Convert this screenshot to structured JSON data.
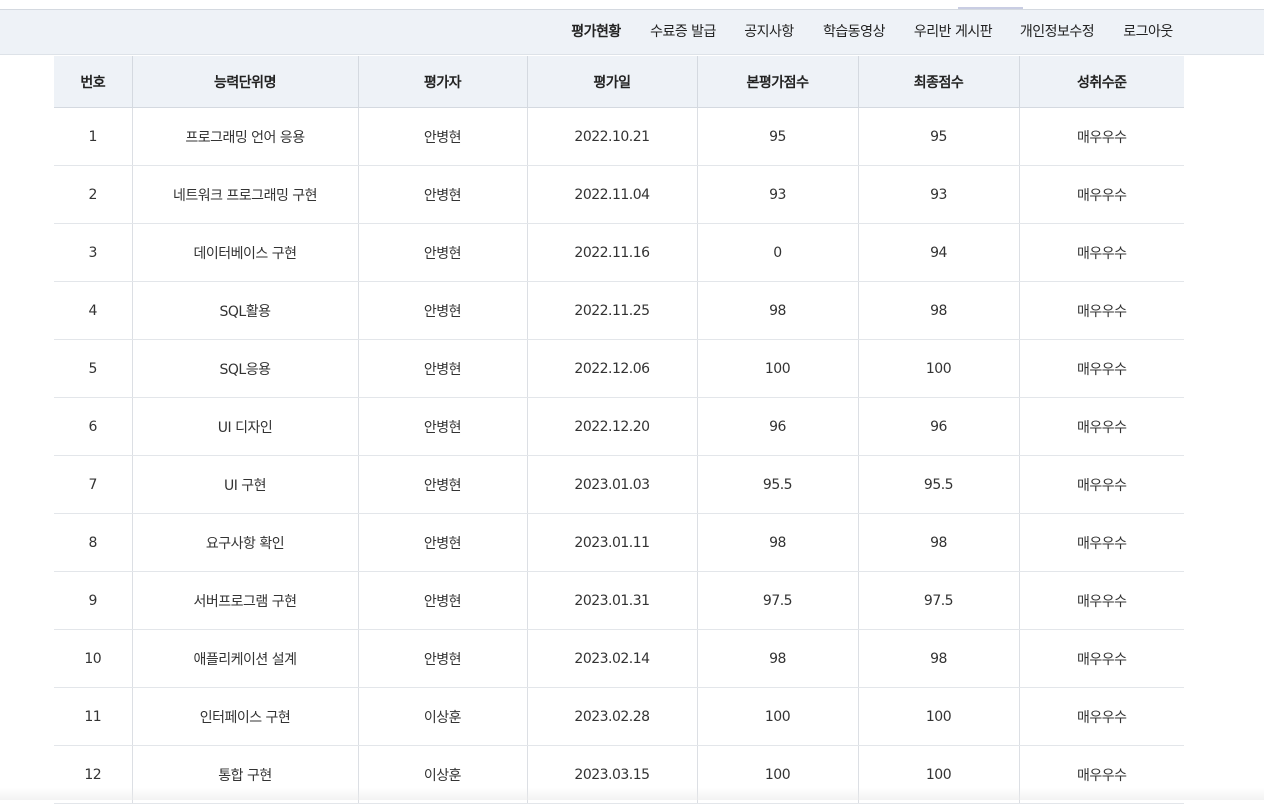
{
  "nav": {
    "items": [
      {
        "label": "평가현황",
        "active": true
      },
      {
        "label": "수료증 발급",
        "active": false
      },
      {
        "label": "공지사항",
        "active": false
      },
      {
        "label": "학습동영상",
        "active": false
      },
      {
        "label": "우리반 게시판",
        "active": false
      },
      {
        "label": "개인정보수정",
        "active": false
      },
      {
        "label": "로그아웃",
        "active": false
      }
    ]
  },
  "table": {
    "headers": [
      "번호",
      "능력단위명",
      "평가자",
      "평가일",
      "본평가점수",
      "최종점수",
      "성취수준"
    ],
    "rows": [
      [
        "1",
        "프로그래밍 언어 응용",
        "안병현",
        "2022.10.21",
        "95",
        "95",
        "매우우수"
      ],
      [
        "2",
        "네트워크 프로그래밍 구현",
        "안병현",
        "2022.11.04",
        "93",
        "93",
        "매우우수"
      ],
      [
        "3",
        "데이터베이스 구현",
        "안병현",
        "2022.11.16",
        "0",
        "94",
        "매우우수"
      ],
      [
        "4",
        "SQL활용",
        "안병현",
        "2022.11.25",
        "98",
        "98",
        "매우우수"
      ],
      [
        "5",
        "SQL응용",
        "안병현",
        "2022.12.06",
        "100",
        "100",
        "매우우수"
      ],
      [
        "6",
        "UI 디자인",
        "안병현",
        "2022.12.20",
        "96",
        "96",
        "매우우수"
      ],
      [
        "7",
        "UI 구현",
        "안병현",
        "2023.01.03",
        "95.5",
        "95.5",
        "매우우수"
      ],
      [
        "8",
        "요구사항 확인",
        "안병현",
        "2023.01.11",
        "98",
        "98",
        "매우우수"
      ],
      [
        "9",
        "서버프로그램 구현",
        "안병현",
        "2023.01.31",
        "97.5",
        "97.5",
        "매우우수"
      ],
      [
        "10",
        "애플리케이션 설계",
        "안병현",
        "2023.02.14",
        "98",
        "98",
        "매우우수"
      ],
      [
        "11",
        "인터페이스 구현",
        "이상훈",
        "2023.02.28",
        "100",
        "100",
        "매우우수"
      ],
      [
        "12",
        "통합 구현",
        "이상훈",
        "2023.03.15",
        "100",
        "100",
        "매우우수"
      ]
    ]
  }
}
